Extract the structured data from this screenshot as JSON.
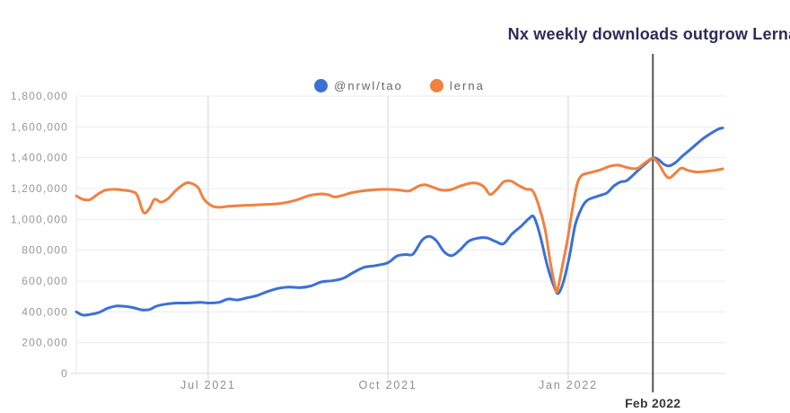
{
  "title": "Nx weekly downloads outgrow Lerna",
  "colors": {
    "title": "#2F2A5A",
    "nrwl_tao": "#3B70D6",
    "lerna": "#F0813F",
    "grid_h": "#ECECEC",
    "grid_v": "#D4D4D4",
    "axis_line": "#DCDCDC",
    "annotation_line": "#55555A",
    "tick_text": "#979797",
    "background": "#FFFFFF"
  },
  "chart_data": {
    "type": "line",
    "title": "Nx weekly downloads outgrow Lerna",
    "legend_position": "top-center",
    "grid": true,
    "legend": [
      {
        "label": "@nrwl/tao",
        "color": "#3B70D6"
      },
      {
        "label": "lerna",
        "color": "#F0813F"
      }
    ],
    "y_axis": {
      "min": 0,
      "max": 1800000,
      "tick_step": 200000,
      "tick_labels": [
        "1,800,000",
        "1,600,000",
        "1,400,000",
        "1,200,000",
        "1,000,000",
        "800,000",
        "600,000",
        "400,000",
        "200,000",
        "0"
      ],
      "tick_values": [
        1800000,
        1600000,
        1400000,
        1200000,
        1000000,
        800000,
        600000,
        400000,
        200000,
        0
      ]
    },
    "x_axis": {
      "unit": "time (Apr 2021 - Mar 2022), pos = fraction of axis width",
      "ticks": [
        {
          "label": "Jul 2021",
          "pos": 0.204
        },
        {
          "label": "Oct 2021",
          "pos": 0.482
        },
        {
          "label": "Jan 2022",
          "pos": 0.761
        }
      ]
    },
    "annotation": {
      "label": "Feb 2022",
      "pos": 0.892
    },
    "series": [
      {
        "name": "@nrwl/tao",
        "color": "#3B70D6",
        "points": [
          [
            0.0,
            400000
          ],
          [
            0.01,
            379000
          ],
          [
            0.021,
            383000
          ],
          [
            0.035,
            396000
          ],
          [
            0.049,
            424000
          ],
          [
            0.063,
            438000
          ],
          [
            0.076,
            435000
          ],
          [
            0.09,
            425000
          ],
          [
            0.101,
            413000
          ],
          [
            0.113,
            415000
          ],
          [
            0.124,
            437000
          ],
          [
            0.138,
            450000
          ],
          [
            0.151,
            456000
          ],
          [
            0.165,
            457000
          ],
          [
            0.179,
            459000
          ],
          [
            0.193,
            462000
          ],
          [
            0.204,
            457000
          ],
          [
            0.221,
            462000
          ],
          [
            0.235,
            483000
          ],
          [
            0.249,
            477000
          ],
          [
            0.263,
            490000
          ],
          [
            0.279,
            505000
          ],
          [
            0.296,
            532000
          ],
          [
            0.313,
            553000
          ],
          [
            0.329,
            561000
          ],
          [
            0.346,
            557000
          ],
          [
            0.363,
            568000
          ],
          [
            0.379,
            594000
          ],
          [
            0.396,
            602000
          ],
          [
            0.413,
            618000
          ],
          [
            0.429,
            656000
          ],
          [
            0.446,
            690000
          ],
          [
            0.463,
            700000
          ],
          [
            0.482,
            719000
          ],
          [
            0.496,
            762000
          ],
          [
            0.51,
            772000
          ],
          [
            0.521,
            775000
          ],
          [
            0.535,
            865000
          ],
          [
            0.546,
            890000
          ],
          [
            0.557,
            862000
          ],
          [
            0.569,
            790000
          ],
          [
            0.581,
            765000
          ],
          [
            0.593,
            800000
          ],
          [
            0.607,
            858000
          ],
          [
            0.621,
            878000
          ],
          [
            0.635,
            880000
          ],
          [
            0.649,
            856000
          ],
          [
            0.661,
            842000
          ],
          [
            0.674,
            905000
          ],
          [
            0.688,
            955000
          ],
          [
            0.701,
            1008000
          ],
          [
            0.708,
            1015000
          ],
          [
            0.717,
            905000
          ],
          [
            0.729,
            695000
          ],
          [
            0.74,
            555000
          ],
          [
            0.746,
            520000
          ],
          [
            0.754,
            600000
          ],
          [
            0.763,
            762000
          ],
          [
            0.772,
            965000
          ],
          [
            0.782,
            1075000
          ],
          [
            0.79,
            1122000
          ],
          [
            0.799,
            1140000
          ],
          [
            0.81,
            1155000
          ],
          [
            0.821,
            1172000
          ],
          [
            0.832,
            1218000
          ],
          [
            0.842,
            1243000
          ],
          [
            0.851,
            1250000
          ],
          [
            0.861,
            1285000
          ],
          [
            0.871,
            1325000
          ],
          [
            0.881,
            1362000
          ],
          [
            0.892,
            1398000
          ],
          [
            0.9,
            1390000
          ],
          [
            0.91,
            1355000
          ],
          [
            0.918,
            1348000
          ],
          [
            0.928,
            1372000
          ],
          [
            0.938,
            1412000
          ],
          [
            0.949,
            1450000
          ],
          [
            0.96,
            1490000
          ],
          [
            0.971,
            1528000
          ],
          [
            0.982,
            1558000
          ],
          [
            0.993,
            1585000
          ],
          [
            1.0,
            1593000
          ]
        ]
      },
      {
        "name": "lerna",
        "color": "#F0813F",
        "points": [
          [
            0.0,
            1152000
          ],
          [
            0.01,
            1130000
          ],
          [
            0.021,
            1128000
          ],
          [
            0.032,
            1160000
          ],
          [
            0.044,
            1188000
          ],
          [
            0.058,
            1195000
          ],
          [
            0.072,
            1190000
          ],
          [
            0.085,
            1182000
          ],
          [
            0.094,
            1158000
          ],
          [
            0.104,
            1045000
          ],
          [
            0.113,
            1070000
          ],
          [
            0.121,
            1130000
          ],
          [
            0.131,
            1112000
          ],
          [
            0.142,
            1135000
          ],
          [
            0.154,
            1188000
          ],
          [
            0.168,
            1232000
          ],
          [
            0.176,
            1236000
          ],
          [
            0.188,
            1208000
          ],
          [
            0.197,
            1135000
          ],
          [
            0.208,
            1092000
          ],
          [
            0.219,
            1078000
          ],
          [
            0.236,
            1085000
          ],
          [
            0.257,
            1090000
          ],
          [
            0.278,
            1094000
          ],
          [
            0.299,
            1098000
          ],
          [
            0.319,
            1105000
          ],
          [
            0.34,
            1125000
          ],
          [
            0.361,
            1155000
          ],
          [
            0.379,
            1165000
          ],
          [
            0.39,
            1160000
          ],
          [
            0.4,
            1145000
          ],
          [
            0.413,
            1157000
          ],
          [
            0.426,
            1173000
          ],
          [
            0.443,
            1185000
          ],
          [
            0.463,
            1193000
          ],
          [
            0.482,
            1195000
          ],
          [
            0.5,
            1190000
          ],
          [
            0.515,
            1184000
          ],
          [
            0.529,
            1215000
          ],
          [
            0.539,
            1225000
          ],
          [
            0.551,
            1210000
          ],
          [
            0.565,
            1190000
          ],
          [
            0.579,
            1192000
          ],
          [
            0.593,
            1215000
          ],
          [
            0.607,
            1232000
          ],
          [
            0.619,
            1235000
          ],
          [
            0.631,
            1210000
          ],
          [
            0.64,
            1162000
          ],
          [
            0.65,
            1192000
          ],
          [
            0.661,
            1243000
          ],
          [
            0.672,
            1249000
          ],
          [
            0.685,
            1218000
          ],
          [
            0.696,
            1196000
          ],
          [
            0.706,
            1185000
          ],
          [
            0.715,
            1095000
          ],
          [
            0.725,
            940000
          ],
          [
            0.733,
            730000
          ],
          [
            0.74,
            580000
          ],
          [
            0.744,
            535000
          ],
          [
            0.753,
            720000
          ],
          [
            0.76,
            870000
          ],
          [
            0.768,
            1080000
          ],
          [
            0.775,
            1230000
          ],
          [
            0.782,
            1285000
          ],
          [
            0.792,
            1300000
          ],
          [
            0.803,
            1312000
          ],
          [
            0.814,
            1326000
          ],
          [
            0.826,
            1345000
          ],
          [
            0.838,
            1352000
          ],
          [
            0.849,
            1340000
          ],
          [
            0.86,
            1330000
          ],
          [
            0.869,
            1333000
          ],
          [
            0.881,
            1370000
          ],
          [
            0.892,
            1397000
          ],
          [
            0.901,
            1360000
          ],
          [
            0.911,
            1290000
          ],
          [
            0.918,
            1270000
          ],
          [
            0.928,
            1305000
          ],
          [
            0.936,
            1333000
          ],
          [
            0.946,
            1318000
          ],
          [
            0.96,
            1307000
          ],
          [
            0.974,
            1311000
          ],
          [
            0.988,
            1318000
          ],
          [
            1.0,
            1328000
          ]
        ]
      }
    ]
  }
}
